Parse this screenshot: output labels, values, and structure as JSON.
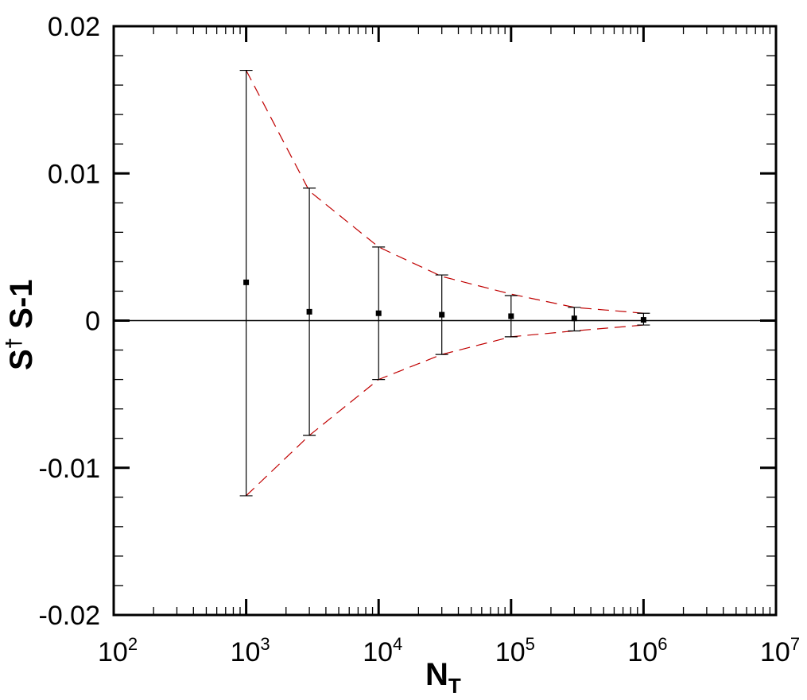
{
  "chart_data": {
    "type": "scatter",
    "x_scale": "log",
    "xlim": [
      100,
      10000000
    ],
    "ylim": [
      -0.02,
      0.02
    ],
    "grid": false,
    "legend": "none",
    "xlabel": {
      "main": "N",
      "sub": "T"
    },
    "ylabel": {
      "main": "S",
      "sup": "†",
      "rest": " S-1"
    },
    "x_ticks": [
      {
        "base": "10",
        "exp": "2",
        "value": 100
      },
      {
        "base": "10",
        "exp": "3",
        "value": 1000
      },
      {
        "base": "10",
        "exp": "4",
        "value": 10000
      },
      {
        "base": "10",
        "exp": "5",
        "value": 100000
      },
      {
        "base": "10",
        "exp": "6",
        "value": 1000000
      },
      {
        "base": "10",
        "exp": "7",
        "value": 10000000
      }
    ],
    "y_ticks": [
      {
        "label": "0.02",
        "value": 0.02
      },
      {
        "label": "0.01",
        "value": 0.01
      },
      {
        "label": "0",
        "value": 0
      },
      {
        "label": "-0.01",
        "value": -0.01
      },
      {
        "label": "-0.02",
        "value": -0.02
      }
    ],
    "series": [
      {
        "marker": "square",
        "color": "#000000",
        "x": [
          1000,
          3000,
          10000,
          30000,
          100000,
          300000,
          1000000
        ],
        "y": [
          0.0026,
          0.0006,
          0.0005,
          0.0004,
          0.0003,
          0.00015,
          5e-05
        ],
        "err_upper": [
          0.017,
          0.009,
          0.005,
          0.0031,
          0.0017,
          0.0009,
          0.0005
        ],
        "err_lower": [
          -0.0119,
          -0.0078,
          -0.004,
          -0.0023,
          -0.0011,
          -0.0007,
          -0.0003
        ]
      }
    ],
    "envelope": {
      "color": "#c00000",
      "style": "dashed",
      "upper": [
        [
          1000,
          0.017
        ],
        [
          3000,
          0.0088
        ],
        [
          10000,
          0.005
        ],
        [
          30000,
          0.003
        ],
        [
          100000,
          0.0018
        ],
        [
          300000,
          0.0009
        ],
        [
          1000000,
          0.0005
        ]
      ],
      "lower": [
        [
          1000,
          -0.0119
        ],
        [
          3000,
          -0.0078
        ],
        [
          10000,
          -0.004
        ],
        [
          30000,
          -0.0023
        ],
        [
          100000,
          -0.0011
        ],
        [
          300000,
          -0.0007
        ],
        [
          1000000,
          -0.0003
        ]
      ]
    },
    "reference_line": {
      "y": 0,
      "color": "#000000"
    }
  }
}
